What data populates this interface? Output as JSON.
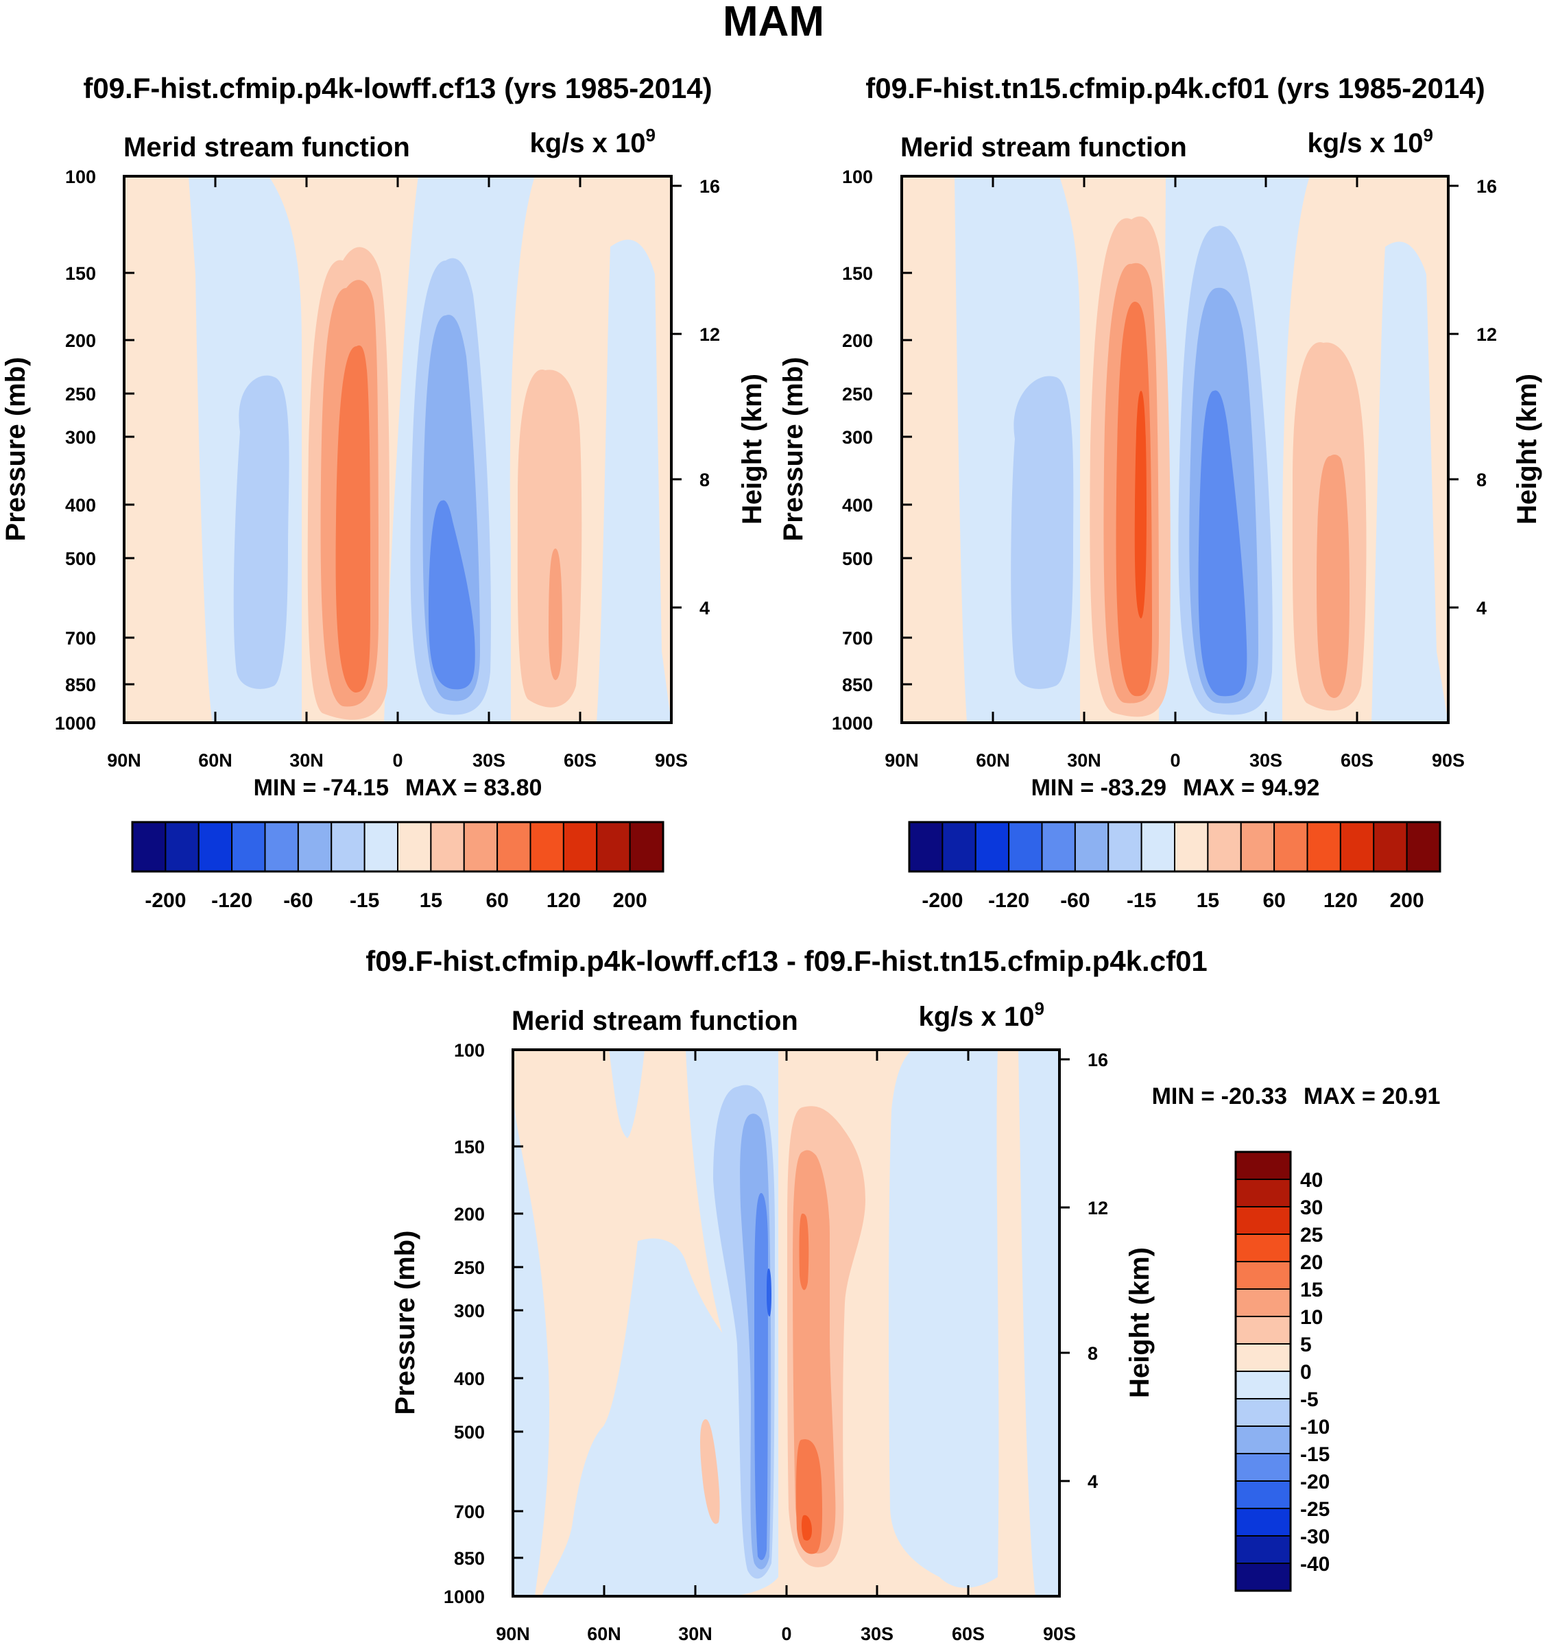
{
  "figure": {
    "title": "MAM"
  },
  "colors": {
    "neg": [
      "#d6e8fb",
      "#b4cff8",
      "#8cb1f2",
      "#5e8cf0",
      "#2f64ea",
      "#0a38dc",
      "#0a20a8",
      "#0a0a80"
    ],
    "pos": [
      "#fde6d2",
      "#fbc6ac",
      "#f9a27e",
      "#f77a4c",
      "#f3521e",
      "#dc300a",
      "#b01a08",
      "#7e0606"
    ]
  },
  "chart_data": [
    {
      "type": "heatmap",
      "id": "panel1",
      "title": "f09.F-hist.cfmip.p4k-lowff.cf13 (yrs 1985-2014)",
      "subtitle_left": "Merid stream function",
      "units": "kg/s x 10",
      "units_exp": "9",
      "ylabel": "Pressure (mb)",
      "y2label": "Height (km)",
      "x_ticks": [
        "90N",
        "60N",
        "30N",
        "0",
        "30S",
        "60S",
        "90S"
      ],
      "y_ticks": [
        "100",
        "150",
        "200",
        "250",
        "300",
        "400",
        "500",
        "700",
        "850",
        "1000"
      ],
      "y2_ticks": [
        "16",
        "12",
        "8",
        "4"
      ],
      "xlim": [
        90,
        -90
      ],
      "ylim": [
        1000,
        100
      ],
      "min_label": "MIN = -74.15",
      "max_label": "MAX =  83.80",
      "colorbar_labels": [
        "-200",
        "-120",
        "-60",
        "-15",
        "15",
        "60",
        "120",
        "200"
      ],
      "levels": [
        -200,
        -150,
        -120,
        -90,
        -60,
        -30,
        -15,
        0,
        15,
        30,
        60,
        90,
        120,
        150,
        200
      ],
      "cells": [
        {
          "lat": 52,
          "p_top": 120,
          "value": -3
        },
        {
          "lat": 35,
          "p_top": 250,
          "value": -18
        },
        {
          "lat": 13,
          "p_top": 200,
          "value": 83.8
        },
        {
          "lat": -15,
          "p_top": 190,
          "value": -74.15
        },
        {
          "lat": -52,
          "p_top": 240,
          "value": 40
        },
        {
          "lat": -82,
          "p_top": 100,
          "value": -3
        }
      ]
    },
    {
      "type": "heatmap",
      "id": "panel2",
      "title": "f09.F-hist.tn15.cfmip.p4k.cf01 (yrs 1985-2014)",
      "subtitle_left": "Merid stream function",
      "units": "kg/s x 10",
      "units_exp": "9",
      "ylabel": "Pressure (mb)",
      "y2label": "Height (km)",
      "x_ticks": [
        "90N",
        "60N",
        "30N",
        "0",
        "30S",
        "60S",
        "90S"
      ],
      "y_ticks": [
        "100",
        "150",
        "200",
        "250",
        "300",
        "400",
        "500",
        "700",
        "850",
        "1000"
      ],
      "y2_ticks": [
        "16",
        "12",
        "8",
        "4"
      ],
      "xlim": [
        90,
        -90
      ],
      "ylim": [
        1000,
        100
      ],
      "min_label": "MIN = -83.29",
      "max_label": "MAX =  94.92",
      "colorbar_labels": [
        "-200",
        "-120",
        "-60",
        "-15",
        "15",
        "60",
        "120",
        "200"
      ],
      "levels": [
        -200,
        -150,
        -120,
        -90,
        -60,
        -30,
        -15,
        0,
        15,
        30,
        60,
        90,
        120,
        150,
        200
      ],
      "cells": [
        {
          "lat": 50,
          "p_top": 100,
          "value": -4
        },
        {
          "lat": 35,
          "p_top": 250,
          "value": -22
        },
        {
          "lat": 13,
          "p_top": 130,
          "value": 94.92
        },
        {
          "lat": -15,
          "p_top": 130,
          "value": -83.29
        },
        {
          "lat": -52,
          "p_top": 200,
          "value": 50
        },
        {
          "lat": -82,
          "p_top": 100,
          "value": -3
        }
      ]
    },
    {
      "type": "heatmap",
      "id": "panel3",
      "title": "f09.F-hist.cfmip.p4k-lowff.cf13 - f09.F-hist.tn15.cfmip.p4k.cf01",
      "subtitle_left": "Merid stream function",
      "units": "kg/s x 10",
      "units_exp": "9",
      "ylabel": "Pressure (mb)",
      "y2label": "Height (km)",
      "x_ticks": [
        "90N",
        "60N",
        "30N",
        "0",
        "30S",
        "60S",
        "90S"
      ],
      "y_ticks": [
        "100",
        "150",
        "200",
        "250",
        "300",
        "400",
        "500",
        "700",
        "850",
        "1000"
      ],
      "y2_ticks": [
        "16",
        "12",
        "8",
        "4"
      ],
      "xlim": [
        90,
        -90
      ],
      "ylim": [
        1000,
        100
      ],
      "min_label": "MIN = -20.33",
      "max_label": "MAX =  20.91",
      "colorbar_labels": [
        "40",
        "30",
        "25",
        "20",
        "15",
        "10",
        "5",
        "0",
        "-5",
        "-10",
        "-15",
        "-20",
        "-25",
        "-30",
        "-40"
      ],
      "levels": [
        -40,
        -30,
        -25,
        -20,
        -15,
        -10,
        -5,
        0,
        5,
        10,
        15,
        20,
        25,
        30,
        40
      ],
      "cells": [
        {
          "lat": 60,
          "p_top": 100,
          "value": 2
        },
        {
          "lat": 8,
          "p_top": 120,
          "value": -20.33
        },
        {
          "lat": -8,
          "p_top": 140,
          "value": 20.91
        },
        {
          "lat": -50,
          "p_top": 100,
          "value": -3
        },
        {
          "lat": 25,
          "p_top": 480,
          "value": 6
        }
      ]
    }
  ]
}
